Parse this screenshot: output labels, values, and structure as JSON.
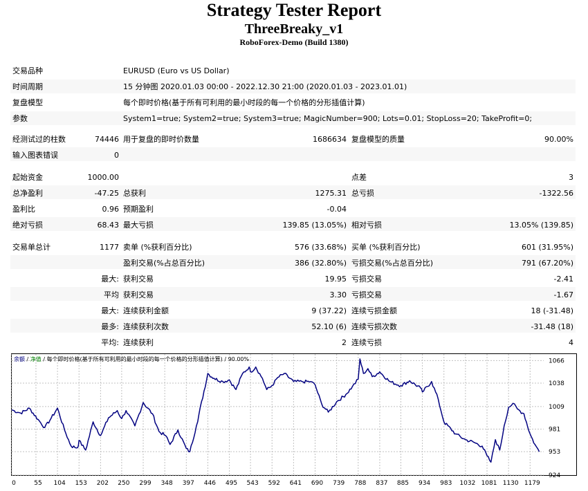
{
  "header": {
    "title": "Strategy Tester Report",
    "expert": "ThreeBreaky_v1",
    "server": "RoboForex-Demo (Build 1380)"
  },
  "info": {
    "symbol_label": "交易品种",
    "symbol_value": "EURUSD (Euro vs US Dollar)",
    "period_label": "时间周期",
    "period_value": "15 分钟图 2020.01.03 00:00 - 2022.12.30 21:00 (2020.01.03 - 2023.01.01)",
    "model_label": "复盘模型",
    "model_value": "每个即时价格(基于所有可利用的最小时段的每一个价格的分形插值计算)",
    "params_label": "参数",
    "params_value": "System1=true; System2=true; System3=true; MagicNumber=900; Lots=0.01; StopLoss=20; TakeProfit=0;"
  },
  "bars": {
    "bars_label": "经测试过的柱数",
    "bars_value": "74446",
    "ticks_label": "用于复盘的即时价数量",
    "ticks_value": "1686634",
    "quality_label": "复盘模型的质量",
    "quality_value": "90.00%",
    "errors_label": "输入图表错误",
    "errors_value": "0"
  },
  "stats": {
    "deposit_label": "起始资金",
    "deposit_value": "1000.00",
    "spread_label": "点差",
    "spread_value": "3",
    "net_label": "总净盈利",
    "net_value": "-47.25",
    "gross_profit_label": "总获利",
    "gross_profit_value": "1275.31",
    "gross_loss_label": "总亏损",
    "gross_loss_value": "-1322.56",
    "pf_label": "盈利比",
    "pf_value": "0.96",
    "payoff_label": "预期盈利",
    "payoff_value": "-0.04",
    "absdd_label": "绝对亏损",
    "absdd_value": "68.43",
    "maxdd_label": "最大亏损",
    "maxdd_value": "139.85 (13.05%)",
    "reldd_label": "相对亏损",
    "reldd_value": "13.05% (139.85)"
  },
  "trades": {
    "total_label": "交易单总计",
    "total_value": "1177",
    "short_label": "卖单 (%获利百分比)",
    "short_value": "576 (33.68%)",
    "long_label": "买单 (%获利百分比)",
    "long_value": "601 (31.95%)",
    "profit_trades_label": "盈利交易(%占总百分比)",
    "profit_trades_value": "386 (32.80%)",
    "loss_trades_label": "亏损交易(%占总百分比)",
    "loss_trades_value": "791 (67.20%)",
    "largest_prefix": "最大:",
    "largest_profit_label": "获利交易",
    "largest_profit_value": "19.95",
    "largest_loss_label": "亏损交易",
    "largest_loss_value": "-2.41",
    "average_prefix": "平均",
    "average_profit_label": "获利交易",
    "average_profit_value": "3.30",
    "average_loss_label": "亏损交易",
    "average_loss_value": "-1.67",
    "max_prefix": "最大:",
    "max_consec_win_label": "连续获利金额",
    "max_consec_win_value": "9 (37.22)",
    "max_consec_loss_label": "连续亏损金额",
    "max_consec_loss_value": "18 (-31.48)",
    "maximal_prefix": "最多:",
    "maximal_consec_profit_label": "连续获利次数",
    "maximal_consec_profit_value": "52.10 (6)",
    "maximal_consec_loss_label": "连续亏损次数",
    "maximal_consec_loss_value": "-31.48 (18)",
    "avg_prefix": "平均:",
    "avg_consec_win_label": "连续获利",
    "avg_consec_win_value": "2",
    "avg_consec_loss_label": "连续亏损",
    "avg_consec_loss_value": "4"
  },
  "chart_data": {
    "type": "line",
    "legend": {
      "balance": "余额",
      "sep1": " / ",
      "equity": "净值",
      "sep2": " / ",
      "text": "每个即时价格(基于所有可利用的最小时段的每一个价格的分形插值计算)",
      "sep3": " / ",
      "quality": "90.00%"
    },
    "balance_color": "#000080",
    "equity_color": "#008000",
    "legend_color": "#000080",
    "x_ticks": [
      0,
      55,
      104,
      153,
      202,
      250,
      299,
      348,
      397,
      446,
      495,
      543,
      592,
      641,
      690,
      739,
      788,
      837,
      885,
      934,
      983,
      1032,
      1081,
      1130,
      1179
    ],
    "y_ticks": [
      924,
      953,
      981,
      1009,
      1038,
      1066
    ],
    "xlim": [
      0,
      1210
    ],
    "ylim": [
      924,
      1074
    ],
    "keypoints": [
      [
        0,
        1005
      ],
      [
        20,
        1001
      ],
      [
        40,
        1007
      ],
      [
        60,
        993
      ],
      [
        75,
        983
      ],
      [
        90,
        995
      ],
      [
        104,
        1007
      ],
      [
        120,
        980
      ],
      [
        135,
        960
      ],
      [
        150,
        958
      ],
      [
        153,
        967
      ],
      [
        168,
        955
      ],
      [
        185,
        990
      ],
      [
        202,
        973
      ],
      [
        220,
        995
      ],
      [
        240,
        1004
      ],
      [
        250,
        994
      ],
      [
        260,
        1004
      ],
      [
        280,
        985
      ],
      [
        299,
        1014
      ],
      [
        320,
        1000
      ],
      [
        335,
        978
      ],
      [
        350,
        973
      ],
      [
        360,
        962
      ],
      [
        378,
        980
      ],
      [
        397,
        957
      ],
      [
        405,
        953
      ],
      [
        420,
        985
      ],
      [
        446,
        1050
      ],
      [
        460,
        1044
      ],
      [
        480,
        1040
      ],
      [
        495,
        1042
      ],
      [
        510,
        1030
      ],
      [
        525,
        1050
      ],
      [
        540,
        1058
      ],
      [
        543,
        1052
      ],
      [
        555,
        1058
      ],
      [
        570,
        1044
      ],
      [
        580,
        1030
      ],
      [
        592,
        1035
      ],
      [
        605,
        1045
      ],
      [
        620,
        1050
      ],
      [
        641,
        1040
      ],
      [
        660,
        1040
      ],
      [
        680,
        1040
      ],
      [
        690,
        1036
      ],
      [
        705,
        1012
      ],
      [
        720,
        1002
      ],
      [
        739,
        1015
      ],
      [
        760,
        1024
      ],
      [
        775,
        1034
      ],
      [
        788,
        1043
      ],
      [
        792,
        1068
      ],
      [
        800,
        1050
      ],
      [
        810,
        1056
      ],
      [
        820,
        1046
      ],
      [
        837,
        1052
      ],
      [
        860,
        1040
      ],
      [
        885,
        1035
      ],
      [
        905,
        1041
      ],
      [
        930,
        1032
      ],
      [
        934,
        1027
      ],
      [
        955,
        1040
      ],
      [
        970,
        1018
      ],
      [
        983,
        990
      ],
      [
        1010,
        975
      ],
      [
        1032,
        968
      ],
      [
        1050,
        965
      ],
      [
        1070,
        960
      ],
      [
        1081,
        948
      ],
      [
        1090,
        940
      ],
      [
        1100,
        968
      ],
      [
        1110,
        955
      ],
      [
        1120,
        985
      ],
      [
        1130,
        1008
      ],
      [
        1140,
        1013
      ],
      [
        1150,
        1006
      ],
      [
        1165,
        1000
      ],
      [
        1179,
        975
      ],
      [
        1190,
        962
      ],
      [
        1200,
        953
      ]
    ]
  }
}
